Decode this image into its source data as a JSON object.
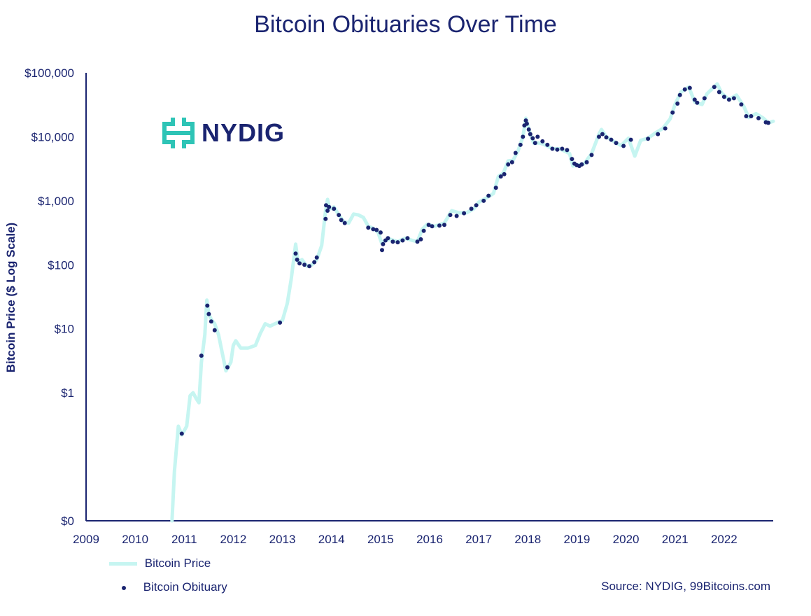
{
  "title": "Bitcoin Obituaries Over Time",
  "ylabel": "Bitcoin Price ($ Log Scale)",
  "source": "Source: NYDIG, 99Bitcoins.com",
  "logo": {
    "text": "NYDIG",
    "icon": "nydig-logo-icon",
    "icon_color": "#2ec4b6"
  },
  "colors": {
    "price_line": "#c6f5f1",
    "obituary_dot": "#1a2470",
    "axis": "#1a2470"
  },
  "legend": {
    "price": "Bitcoin Price",
    "obituary": "Bitcoin Obituary"
  },
  "chart_data": {
    "type": "line",
    "title": "Bitcoin Obituaries Over Time",
    "ylabel": "Bitcoin Price ($ Log Scale)",
    "yscale": "log",
    "xlim": [
      2009,
      2023
    ],
    "ylim": [
      0.01,
      100000
    ],
    "x_ticks": [
      "2009",
      "2010",
      "2011",
      "2012",
      "2013",
      "2014",
      "2015",
      "2016",
      "2017",
      "2018",
      "2019",
      "2020",
      "2021",
      "2022"
    ],
    "y_ticks": [
      {
        "value": 0.01,
        "label": "$0"
      },
      {
        "value": 1,
        "label": "$1"
      },
      {
        "value": 10,
        "label": "$10"
      },
      {
        "value": 100,
        "label": "$100"
      },
      {
        "value": 1000,
        "label": "$1,000"
      },
      {
        "value": 10000,
        "label": "$10,000"
      },
      {
        "value": 100000,
        "label": "$100,000"
      }
    ],
    "grid": false,
    "legend_position": "bottom-left",
    "series": [
      {
        "name": "Bitcoin Price",
        "type": "line",
        "points": [
          [
            2010.75,
            0.01
          ],
          [
            2010.8,
            0.06
          ],
          [
            2010.88,
            0.3
          ],
          [
            2010.95,
            0.22
          ],
          [
            2011.05,
            0.3
          ],
          [
            2011.12,
            0.9
          ],
          [
            2011.18,
            1.0
          ],
          [
            2011.25,
            0.8
          ],
          [
            2011.3,
            0.7
          ],
          [
            2011.35,
            3.0
          ],
          [
            2011.42,
            8.0
          ],
          [
            2011.46,
            28.0
          ],
          [
            2011.5,
            17.0
          ],
          [
            2011.55,
            14.0
          ],
          [
            2011.62,
            12.0
          ],
          [
            2011.7,
            8.0
          ],
          [
            2011.78,
            4.0
          ],
          [
            2011.85,
            2.2
          ],
          [
            2011.95,
            3.0
          ],
          [
            2012.0,
            5.5
          ],
          [
            2012.05,
            6.5
          ],
          [
            2012.15,
            5.0
          ],
          [
            2012.3,
            5.0
          ],
          [
            2012.45,
            5.5
          ],
          [
            2012.55,
            8.5
          ],
          [
            2012.65,
            12.0
          ],
          [
            2012.75,
            11.0
          ],
          [
            2012.85,
            12.0
          ],
          [
            2013.0,
            13.5
          ],
          [
            2013.1,
            25.0
          ],
          [
            2013.18,
            60.0
          ],
          [
            2013.27,
            210.0
          ],
          [
            2013.32,
            110.0
          ],
          [
            2013.4,
            120.0
          ],
          [
            2013.5,
            95.0
          ],
          [
            2013.6,
            100.0
          ],
          [
            2013.7,
            120.0
          ],
          [
            2013.8,
            200.0
          ],
          [
            2013.88,
            700.0
          ],
          [
            2013.92,
            1050.0
          ],
          [
            2013.96,
            750.0
          ],
          [
            2014.05,
            800.0
          ],
          [
            2014.15,
            600.0
          ],
          [
            2014.25,
            470.0
          ],
          [
            2014.35,
            450.0
          ],
          [
            2014.45,
            620.0
          ],
          [
            2014.55,
            600.0
          ],
          [
            2014.65,
            550.0
          ],
          [
            2014.75,
            400.0
          ],
          [
            2014.85,
            370.0
          ],
          [
            2014.95,
            320.0
          ],
          [
            2015.02,
            220.0
          ],
          [
            2015.1,
            240.0
          ],
          [
            2015.2,
            250.0
          ],
          [
            2015.35,
            230.0
          ],
          [
            2015.5,
            260.0
          ],
          [
            2015.65,
            240.0
          ],
          [
            2015.75,
            230.0
          ],
          [
            2015.85,
            360.0
          ],
          [
            2015.95,
            430.0
          ],
          [
            2016.1,
            400.0
          ],
          [
            2016.3,
            450.0
          ],
          [
            2016.45,
            700.0
          ],
          [
            2016.6,
            650.0
          ],
          [
            2016.75,
            650.0
          ],
          [
            2016.9,
            750.0
          ],
          [
            2017.0,
            950.0
          ],
          [
            2017.15,
            1100.0
          ],
          [
            2017.3,
            1300.0
          ],
          [
            2017.4,
            2400.0
          ],
          [
            2017.5,
            2700.0
          ],
          [
            2017.6,
            4200.0
          ],
          [
            2017.7,
            4300.0
          ],
          [
            2017.8,
            6000.0
          ],
          [
            2017.9,
            10000.0
          ],
          [
            2017.96,
            19500.0
          ],
          [
            2018.05,
            11000.0
          ],
          [
            2018.12,
            8000.0
          ],
          [
            2018.25,
            8000.0
          ],
          [
            2018.35,
            7500.0
          ],
          [
            2018.5,
            6500.0
          ],
          [
            2018.65,
            6500.0
          ],
          [
            2018.85,
            5500.0
          ],
          [
            2018.92,
            3500.0
          ],
          [
            2019.0,
            3600.0
          ],
          [
            2019.15,
            3800.0
          ],
          [
            2019.3,
            5500.0
          ],
          [
            2019.45,
            11000.0
          ],
          [
            2019.5,
            13000.0
          ],
          [
            2019.6,
            10000.0
          ],
          [
            2019.75,
            8500.0
          ],
          [
            2019.9,
            7300.0
          ],
          [
            2020.05,
            9500.0
          ],
          [
            2020.18,
            5000.0
          ],
          [
            2020.3,
            8800.0
          ],
          [
            2020.45,
            9500.0
          ],
          [
            2020.6,
            11500.0
          ],
          [
            2020.75,
            13500.0
          ],
          [
            2020.9,
            19000.0
          ],
          [
            2021.0,
            32000.0
          ],
          [
            2021.12,
            50000.0
          ],
          [
            2021.28,
            60000.0
          ],
          [
            2021.4,
            35000.0
          ],
          [
            2021.55,
            32000.0
          ],
          [
            2021.65,
            47000.0
          ],
          [
            2021.86,
            67000.0
          ],
          [
            2021.95,
            48000.0
          ],
          [
            2022.1,
            38000.0
          ],
          [
            2022.25,
            45000.0
          ],
          [
            2022.4,
            30000.0
          ],
          [
            2022.5,
            20000.0
          ],
          [
            2022.65,
            23000.0
          ],
          [
            2022.8,
            19500.0
          ],
          [
            2022.9,
            16500.0
          ],
          [
            2023.0,
            17500.0
          ]
        ]
      },
      {
        "name": "Bitcoin Obituary",
        "type": "scatter",
        "points": [
          [
            2010.95,
            0.23
          ],
          [
            2011.35,
            3.8
          ],
          [
            2011.47,
            23.0
          ],
          [
            2011.5,
            17.0
          ],
          [
            2011.55,
            13.0
          ],
          [
            2011.62,
            9.5
          ],
          [
            2011.88,
            2.5
          ],
          [
            2012.95,
            12.5
          ],
          [
            2013.27,
            150.0
          ],
          [
            2013.3,
            120.0
          ],
          [
            2013.35,
            105.0
          ],
          [
            2013.45,
            100.0
          ],
          [
            2013.55,
            95.0
          ],
          [
            2013.65,
            110.0
          ],
          [
            2013.7,
            130.0
          ],
          [
            2013.89,
            850.0
          ],
          [
            2013.92,
            700.0
          ],
          [
            2013.95,
            800.0
          ],
          [
            2013.88,
            520.0
          ],
          [
            2014.05,
            750.0
          ],
          [
            2014.15,
            600.0
          ],
          [
            2014.2,
            500.0
          ],
          [
            2014.27,
            450.0
          ],
          [
            2014.75,
            380.0
          ],
          [
            2014.85,
            360.0
          ],
          [
            2014.92,
            350.0
          ],
          [
            2015.0,
            320.0
          ],
          [
            2015.05,
            210.0
          ],
          [
            2015.03,
            170.0
          ],
          [
            2015.1,
            240.0
          ],
          [
            2015.15,
            260.0
          ],
          [
            2015.25,
            230.0
          ],
          [
            2015.35,
            225.0
          ],
          [
            2015.45,
            240.0
          ],
          [
            2015.55,
            260.0
          ],
          [
            2015.75,
            230.0
          ],
          [
            2015.82,
            250.0
          ],
          [
            2015.88,
            340.0
          ],
          [
            2015.98,
            420.0
          ],
          [
            2016.05,
            400.0
          ],
          [
            2016.2,
            410.0
          ],
          [
            2016.3,
            420.0
          ],
          [
            2016.42,
            600.0
          ],
          [
            2016.55,
            580.0
          ],
          [
            2016.7,
            640.0
          ],
          [
            2016.85,
            750.0
          ],
          [
            2016.95,
            850.0
          ],
          [
            2017.1,
            1000.0
          ],
          [
            2017.2,
            1200.0
          ],
          [
            2017.35,
            1600.0
          ],
          [
            2017.45,
            2400.0
          ],
          [
            2017.52,
            2600.0
          ],
          [
            2017.6,
            3700.0
          ],
          [
            2017.68,
            4000.0
          ],
          [
            2017.75,
            5600.0
          ],
          [
            2017.85,
            7500.0
          ],
          [
            2017.9,
            10000.0
          ],
          [
            2017.93,
            15000.0
          ],
          [
            2017.96,
            18000.0
          ],
          [
            2017.98,
            16000.0
          ],
          [
            2018.02,
            13000.0
          ],
          [
            2018.05,
            11000.0
          ],
          [
            2018.1,
            9500.0
          ],
          [
            2018.15,
            8000.0
          ],
          [
            2018.2,
            10000.0
          ],
          [
            2018.3,
            8500.0
          ],
          [
            2018.4,
            7500.0
          ],
          [
            2018.5,
            6500.0
          ],
          [
            2018.6,
            6300.0
          ],
          [
            2018.7,
            6500.0
          ],
          [
            2018.8,
            6200.0
          ],
          [
            2018.9,
            4500.0
          ],
          [
            2018.95,
            3800.0
          ],
          [
            2019.0,
            3600.0
          ],
          [
            2019.05,
            3500.0
          ],
          [
            2019.1,
            3700.0
          ],
          [
            2019.2,
            4000.0
          ],
          [
            2019.3,
            5200.0
          ],
          [
            2019.45,
            10000.0
          ],
          [
            2019.52,
            11000.0
          ],
          [
            2019.6,
            9800.0
          ],
          [
            2019.7,
            9000.0
          ],
          [
            2019.8,
            8000.0
          ],
          [
            2019.95,
            7200.0
          ],
          [
            2020.1,
            9000.0
          ],
          [
            2020.45,
            9300.0
          ],
          [
            2020.65,
            11000.0
          ],
          [
            2020.8,
            13500.0
          ],
          [
            2020.95,
            24000.0
          ],
          [
            2021.05,
            33000.0
          ],
          [
            2021.1,
            45000.0
          ],
          [
            2021.2,
            55000.0
          ],
          [
            2021.3,
            58000.0
          ],
          [
            2021.4,
            38000.0
          ],
          [
            2021.45,
            34000.0
          ],
          [
            2021.6,
            40000.0
          ],
          [
            2021.8,
            60000.0
          ],
          [
            2021.9,
            50000.0
          ],
          [
            2022.0,
            42000.0
          ],
          [
            2022.1,
            38000.0
          ],
          [
            2022.2,
            40000.0
          ],
          [
            2022.35,
            32000.0
          ],
          [
            2022.45,
            21000.0
          ],
          [
            2022.55,
            21000.0
          ],
          [
            2022.7,
            19500.0
          ],
          [
            2022.85,
            16800.0
          ],
          [
            2022.9,
            16500.0
          ]
        ]
      }
    ]
  }
}
